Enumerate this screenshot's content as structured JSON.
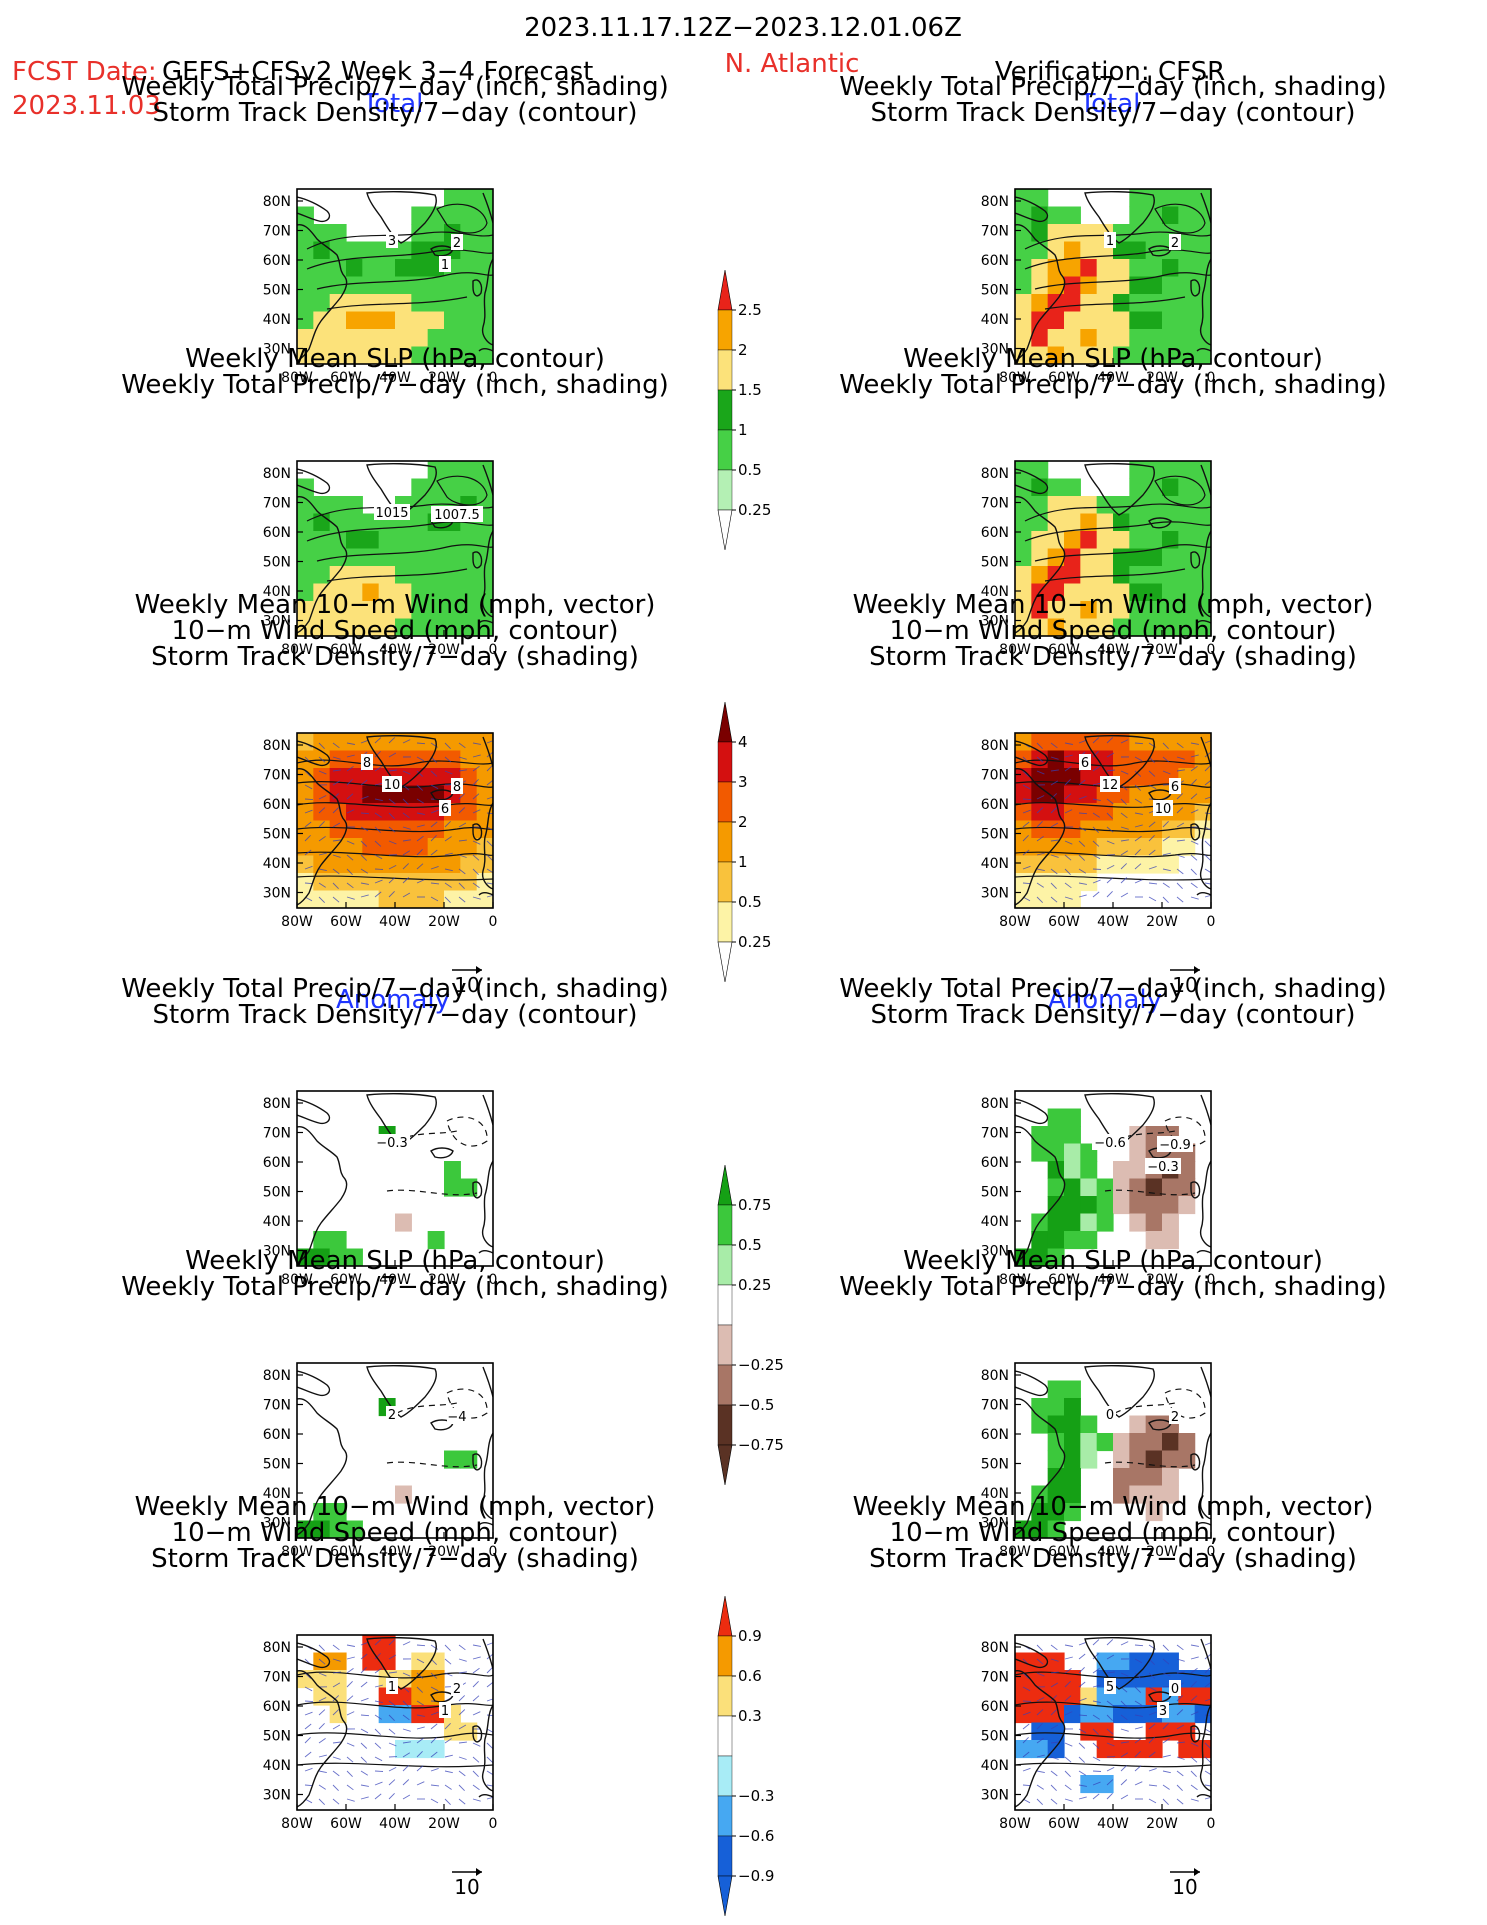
{
  "header": {
    "period": "2023.11.17.12Z−2023.12.01.06Z",
    "fcst_label": "FCST Date:",
    "model": "GEFS+CFSv2 Week 3−4 Forecast",
    "region": "N. Atlantic",
    "verification": "Verification: CFSR",
    "fcst_date": "2023.11.03"
  },
  "sections": {
    "total_left": "Total",
    "total_right": "Total",
    "anomaly_left": "Anomaly",
    "anomaly_right": "Anomaly"
  },
  "titles": {
    "precip_track": [
      "Weekly Total Precip/7−day (inch, shading)",
      "Storm Track Density/7−day (contour)"
    ],
    "slp_precip": [
      "Weekly Mean SLP (hPa, contour)",
      "Weekly Total Precip/7−day (inch, shading)"
    ],
    "wind_track": [
      "Weekly Mean 10−m Wind (mph, vector)",
      "10−m Wind Speed (mph, contour)",
      "Storm Track Density/7−day (shading)"
    ]
  },
  "axes": {
    "lat_ticks": [
      "80N",
      "70N",
      "60N",
      "50N",
      "40N",
      "30N"
    ],
    "lon_ticks": [
      "80W",
      "60W",
      "40W",
      "20W",
      "0"
    ]
  },
  "vector_ref": "10",
  "colorbars": {
    "precip_total": {
      "labels": [
        "2.5",
        "2",
        "1.5",
        "1",
        "0.5",
        "0.25"
      ],
      "colors": [
        "#e8231a",
        "#f7a400",
        "#fce27a",
        "#1aa61a",
        "#46d046",
        "#b4f0b4"
      ]
    },
    "track_total": {
      "labels": [
        "4",
        "3",
        "2",
        "1",
        "0.5",
        "0.25"
      ],
      "colors": [
        "#7a0000",
        "#d41010",
        "#f25a00",
        "#f59a00",
        "#f9c23c",
        "#fdf3a6"
      ]
    },
    "precip_anom": {
      "labels": [
        "0.75",
        "0.5",
        "0.25",
        "−0.25",
        "−0.5",
        "−0.75"
      ],
      "colors": [
        "#15a015",
        "#3cc83c",
        "#a8eca8",
        "#ffffff",
        "#dcbcb2",
        "#a87666",
        "#5a3224"
      ]
    },
    "track_anom": {
      "labels": [
        "0.9",
        "0.6",
        "0.3",
        "−0.3",
        "−0.6",
        "−0.9"
      ],
      "colors": [
        "#ec2c10",
        "#f59a00",
        "#fbe07a",
        "#ffffff",
        "#a8ecf6",
        "#46a8f2",
        "#1660d8"
      ]
    }
  },
  "contour_labels": {
    "p1L": [
      "3",
      "2",
      "1"
    ],
    "p1R": [
      "1",
      "2"
    ],
    "p2L": [
      "1015",
      "1007.5"
    ],
    "p3L": [
      "10",
      "8",
      "6",
      "8"
    ],
    "p3R": [
      "12",
      "6",
      "10",
      "6"
    ],
    "p4L": [
      "−0.3"
    ],
    "p4R": [
      "−0.6",
      "−0.9",
      "−0.3"
    ],
    "p5L": [
      "2",
      "−4"
    ],
    "p5R": [
      "0",
      "2"
    ],
    "p6L": [
      "1",
      "2",
      "1"
    ],
    "p6R": [
      "5",
      "0",
      "3"
    ]
  }
}
